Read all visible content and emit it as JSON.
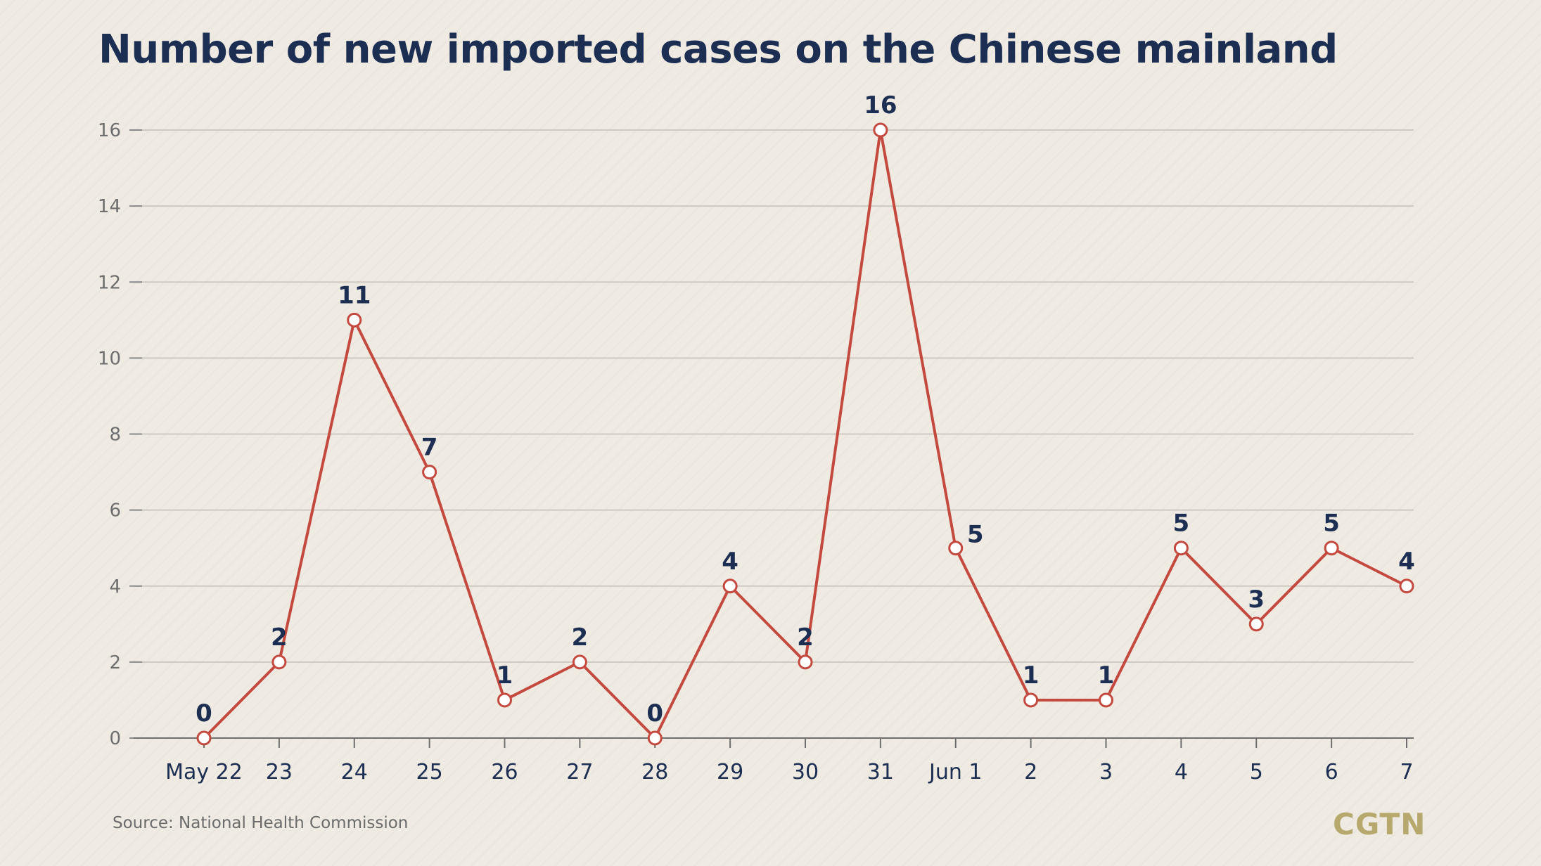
{
  "chart_data": {
    "type": "line",
    "title": "Number of new imported cases on the Chinese mainland",
    "categories": [
      "May 22",
      "23",
      "24",
      "25",
      "26",
      "27",
      "28",
      "29",
      "30",
      "31",
      "Jun 1",
      "2",
      "3",
      "4",
      "5",
      "6",
      "7"
    ],
    "series": [
      {
        "values": [
          0,
          2,
          11,
          7,
          1,
          2,
          0,
          4,
          2,
          16,
          5,
          1,
          1,
          5,
          3,
          5,
          4
        ]
      }
    ],
    "yticks": [
      0,
      2,
      4,
      6,
      8,
      10,
      12,
      14,
      16
    ],
    "ylim": [
      0,
      16
    ],
    "grid": true,
    "xlabel": "",
    "ylabel": "",
    "line_color": "#c4493f",
    "label_color": "#1c2e52"
  },
  "source": "Source: National Health Commission",
  "brand": "CGTN"
}
